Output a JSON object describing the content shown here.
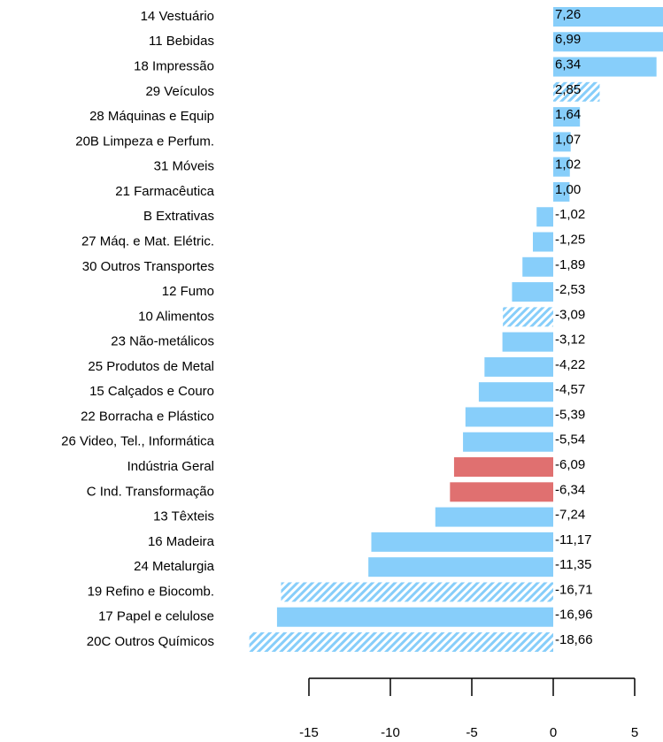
{
  "chart_data": {
    "type": "barh",
    "categories": [
      "14  Vestuário",
      "11  Bebidas",
      "18  Impressão",
      "29  Veículos",
      "28  Máquinas e Equip",
      "20B  Limpeza e Perfum.",
      "31  Móveis",
      "21  Farmacêutica",
      "B  Extrativas",
      "27  Máq. e Mat. Elétric.",
      "30  Outros Transportes",
      "12  Fumo",
      "10  Alimentos",
      "23  Não-metálicos",
      "25  Produtos de Metal",
      "15  Calçados e Couro",
      "22  Borracha e Plástico",
      "26  Video, Tel., Informática",
      "Indústria Geral",
      "C  Ind. Transformação",
      "13  Têxteis",
      "16  Madeira",
      "24  Metalurgia",
      "19  Refino e Biocomb.",
      "17  Papel e celulose",
      "20C  Outros Químicos"
    ],
    "values": [
      7.26,
      6.99,
      6.34,
      2.85,
      1.64,
      1.07,
      1.02,
      1.0,
      -1.02,
      -1.25,
      -1.89,
      -2.53,
      -3.09,
      -3.12,
      -4.22,
      -4.57,
      -5.39,
      -5.54,
      -6.09,
      -6.34,
      -7.24,
      -11.17,
      -11.35,
      -16.71,
      -16.96,
      -18.66
    ],
    "value_labels": [
      "7,26",
      "6,99",
      "6,34",
      "2,85",
      "1,64",
      "1,07",
      "1,02",
      "1,00",
      "-1,02",
      "-1,25",
      "-1,89",
      "-2,53",
      "-3,09",
      "-3,12",
      "-4,22",
      "-4,57",
      "-5,39",
      "-5,54",
      "-6,09",
      "-6,34",
      "-7,24",
      "-11,17",
      "-11,35",
      "-16,71",
      "-16,96",
      "-18,66"
    ],
    "colors": [
      "#87cefa",
      "#87cefa",
      "#87cefa",
      "#87cefa",
      "#87cefa",
      "#87cefa",
      "#87cefa",
      "#87cefa",
      "#87cefa",
      "#87cefa",
      "#87cefa",
      "#87cefa",
      "#87cefa",
      "#87cefa",
      "#87cefa",
      "#87cefa",
      "#87cefa",
      "#87cefa",
      "#e07070",
      "#e07070",
      "#87cefa",
      "#87cefa",
      "#87cefa",
      "#87cefa",
      "#87cefa",
      "#87cefa"
    ],
    "hatched": [
      false,
      false,
      false,
      true,
      false,
      false,
      false,
      false,
      false,
      false,
      false,
      false,
      true,
      false,
      false,
      false,
      false,
      false,
      false,
      false,
      false,
      false,
      false,
      true,
      false,
      true
    ],
    "xlim": [
      -15,
      5
    ],
    "xticks": [
      -15,
      -10,
      -5,
      0,
      5
    ]
  }
}
